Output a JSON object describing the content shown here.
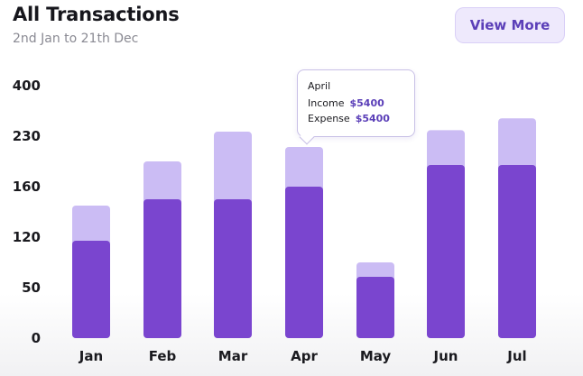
{
  "header": {
    "title": "All Transactions",
    "subtitle": "2nd Jan to 21th Dec",
    "view_more_label": "View More"
  },
  "tooltip": {
    "month": "April",
    "income_label": "Income",
    "income_value": "$5400",
    "expense_label": "Expense",
    "expense_value": "$5400"
  },
  "colors": {
    "income_bar": "#7a45cf",
    "total_bar": "#cbbcf4",
    "accent": "#5b3fb8"
  },
  "chart_data": {
    "type": "bar",
    "stacked": true,
    "categories": [
      "Jan",
      "Feb",
      "Mar",
      "Apr",
      "May",
      "Jun",
      "Jul"
    ],
    "y_tick_labels": [
      "0",
      "50",
      "120",
      "160",
      "230",
      "400"
    ],
    "series": [
      {
        "values": [
          115,
          150,
          150,
          160,
          65,
          190,
          190
        ]
      },
      {
        "values": [
          30,
          45,
          95,
          55,
          20,
          60,
          100
        ]
      }
    ],
    "grid": false,
    "legend": "none"
  }
}
